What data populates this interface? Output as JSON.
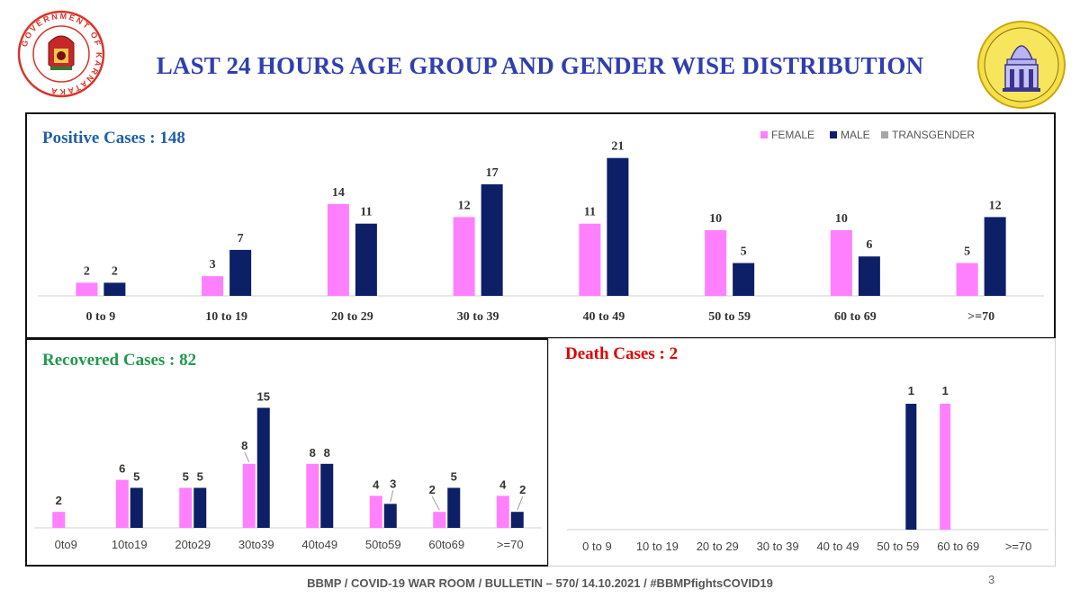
{
  "header": {
    "title": "LAST 24 HOURS AGE GROUP AND GENDER WISE DISTRIBUTION",
    "left_logo_text": "GOVERNMENT OF KARNATAKA"
  },
  "colors": {
    "female": "#ff80ff",
    "male": "#0d1f66",
    "transgender": "#a6a6a6",
    "positive_title": "#1f5fa8",
    "recovered_title": "#1f9a4b",
    "death_title": "#e00000",
    "header_title": "#2f3fb0"
  },
  "legend": [
    "FEMALE",
    "MALE",
    "TRANSGENDER"
  ],
  "chart_data": [
    {
      "type": "bar",
      "title": "Positive Cases : 148",
      "categories": [
        "0 to 9",
        "10 to 19",
        "20 to 29",
        "30 to 39",
        "40 to 49",
        "50 to 59",
        "60 to 69",
        ">=70"
      ],
      "series": [
        {
          "name": "FEMALE",
          "values": [
            2,
            3,
            14,
            12,
            11,
            10,
            10,
            5
          ]
        },
        {
          "name": "MALE",
          "values": [
            2,
            7,
            11,
            17,
            21,
            5,
            6,
            12
          ]
        },
        {
          "name": "TRANSGENDER",
          "values": [
            0,
            0,
            0,
            0,
            0,
            0,
            0,
            0
          ]
        }
      ],
      "legend_position": "top-right",
      "grid": false
    },
    {
      "type": "bar",
      "title": "Recovered Cases : 82",
      "categories": [
        "0to9",
        "10to19",
        "20to29",
        "30to39",
        "40to49",
        "50to59",
        "60to69",
        ">=70"
      ],
      "series": [
        {
          "name": "FEMALE",
          "values": [
            2,
            6,
            5,
            8,
            8,
            4,
            2,
            4
          ]
        },
        {
          "name": "MALE",
          "values": [
            0,
            5,
            5,
            15,
            8,
            3,
            5,
            2
          ]
        }
      ],
      "grid": false
    },
    {
      "type": "bar",
      "title": "Death Cases : 2",
      "categories": [
        "0 to 9",
        "10 to 19",
        "20 to 29",
        "30 to 39",
        "40 to 49",
        "50 to 59",
        "60 to 69",
        ">=70"
      ],
      "series": [
        {
          "name": "FEMALE",
          "values": [
            0,
            0,
            0,
            0,
            0,
            0,
            1,
            0
          ]
        },
        {
          "name": "MALE",
          "values": [
            0,
            0,
            0,
            0,
            0,
            1,
            0,
            0
          ]
        }
      ],
      "grid": false
    }
  ],
  "footer": {
    "text": "BBMP / COVID-19 WAR ROOM / BULLETIN – 570/ 14.10.2021 / #BBMPfightsCOVID19",
    "page_number": "3"
  }
}
